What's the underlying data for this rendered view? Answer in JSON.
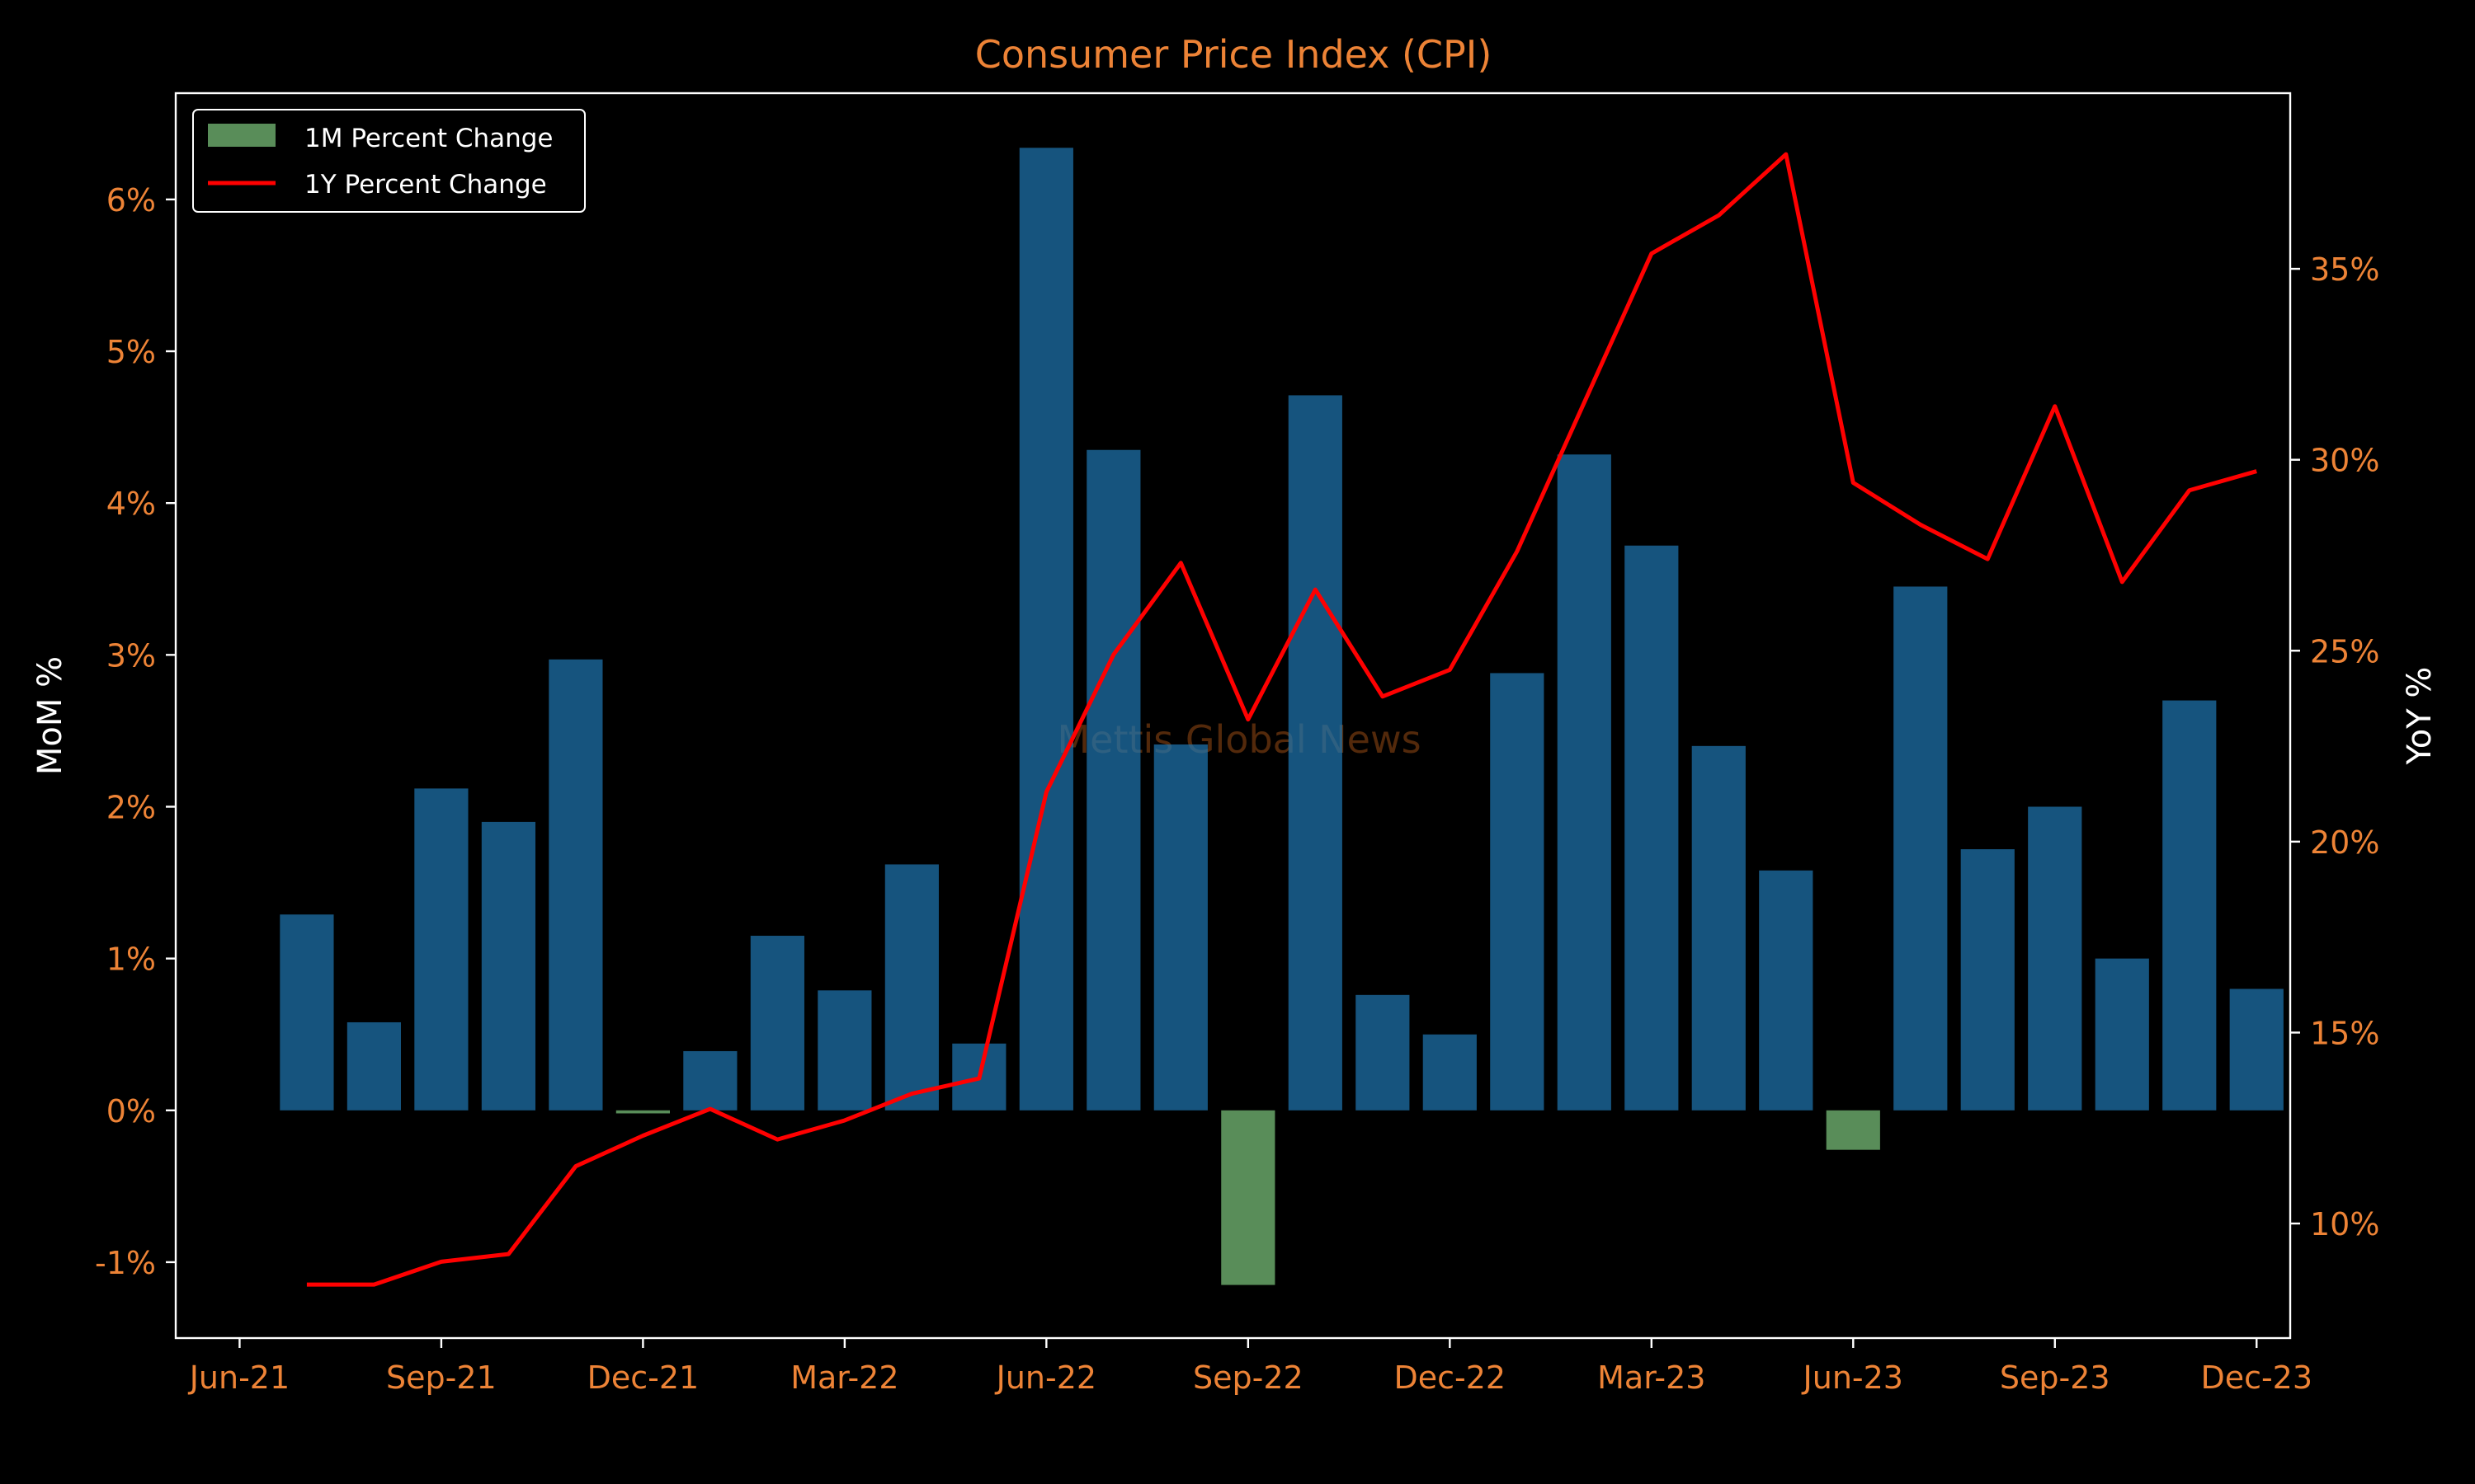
{
  "chart_data": {
    "type": "bar",
    "title": "Consumer Price Index (CPI)",
    "ylabel_left": "MoM %",
    "ylabel_right": "YoY %",
    "watermark": "Mettis Global News",
    "ylim_left": [
      -1.5,
      6.7
    ],
    "ylim_right": [
      7.0,
      39.6
    ],
    "left_ticks": [
      -1,
      0,
      1,
      2,
      3,
      4,
      5,
      6
    ],
    "left_tick_labels": [
      "-1%",
      "0%",
      "1%",
      "2%",
      "3%",
      "4%",
      "5%",
      "6%"
    ],
    "right_ticks": [
      10,
      15,
      20,
      25,
      30,
      35
    ],
    "right_tick_labels": [
      "10%",
      "15%",
      "20%",
      "25%",
      "30%",
      "35%"
    ],
    "x_ticks": [
      "Jun-21",
      "Sep-21",
      "Dec-21",
      "Mar-22",
      "Jun-22",
      "Sep-22",
      "Dec-22",
      "Mar-23",
      "Jun-23",
      "Sep-23",
      "Dec-23"
    ],
    "x_months": [
      "2021-07",
      "2021-08",
      "2021-09",
      "2021-10",
      "2021-11",
      "2021-12",
      "2022-01",
      "2022-02",
      "2022-03",
      "2022-04",
      "2022-05",
      "2022-06",
      "2022-07",
      "2022-08",
      "2022-09",
      "2022-10",
      "2022-11",
      "2022-12",
      "2023-01",
      "2023-02",
      "2023-03",
      "2023-04",
      "2023-05",
      "2023-06",
      "2023-07",
      "2023-08",
      "2023-09",
      "2023-10",
      "2023-11",
      "2023-12"
    ],
    "series": [
      {
        "name": "1M Percent Change",
        "kind": "bar",
        "axis": "left",
        "values": [
          1.29,
          0.58,
          2.12,
          1.9,
          2.97,
          -0.02,
          0.39,
          1.15,
          0.79,
          1.62,
          0.44,
          6.34,
          4.35,
          2.41,
          -1.15,
          4.71,
          0.76,
          0.5,
          2.88,
          4.32,
          3.72,
          2.4,
          1.58,
          -0.26,
          3.45,
          1.72,
          2.0,
          1.0,
          2.7,
          0.8
        ]
      },
      {
        "name": "1Y Percent Change",
        "kind": "line",
        "axis": "right",
        "values": [
          8.4,
          8.4,
          9.0,
          9.2,
          11.5,
          12.3,
          13.0,
          12.2,
          12.7,
          13.4,
          13.8,
          21.3,
          24.9,
          27.3,
          23.2,
          26.6,
          23.8,
          24.5,
          27.6,
          31.5,
          35.4,
          36.4,
          38.0,
          29.4,
          28.3,
          27.4,
          31.4,
          26.8,
          29.2,
          29.7
        ]
      }
    ],
    "colors": {
      "background": "#000000",
      "positive_bar": "#1f77b4",
      "negative_bar": "#7fc97f",
      "line": "#ff0000",
      "title": "#ed8336",
      "ticks": "#ed8336",
      "axis_labels": "#ffffff",
      "watermark": "#8b4513"
    },
    "legend": "upper-left",
    "grid": false
  }
}
